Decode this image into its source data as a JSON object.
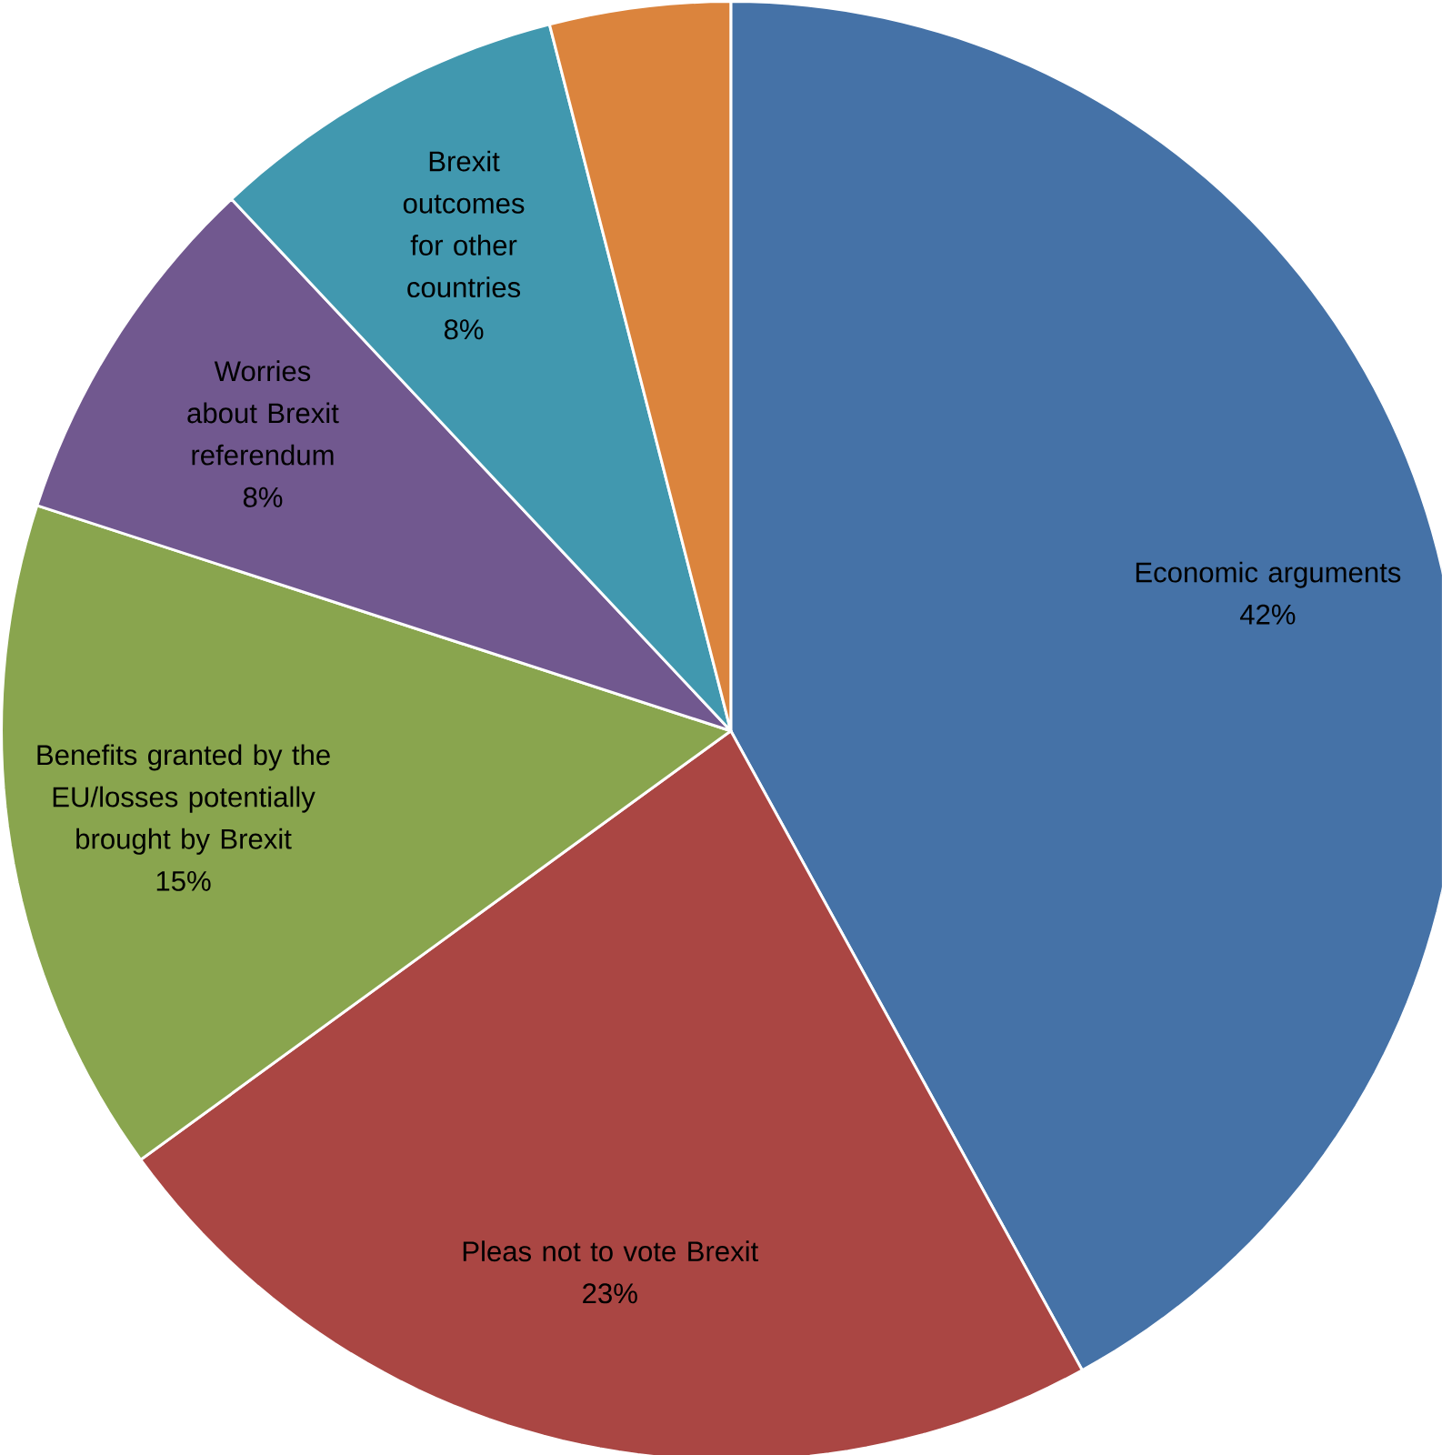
{
  "chart_data": {
    "type": "pie",
    "categories": [
      "Economic arguments",
      "Pleas not to vote Brexit",
      "Benefits granted by the EU/losses potentially brought by Brexit",
      "Worries about Brexit referendum",
      "Brexit outcomes for other countries",
      null
    ],
    "values": [
      42,
      23,
      15,
      8,
      8,
      4
    ],
    "value_labels": [
      "42%",
      "23%",
      "15%",
      "8%",
      "8%",
      null
    ],
    "colors": [
      "#4572a7",
      "#aa4643",
      "#89a54e",
      "#71588f",
      "#4198af",
      "#db843d"
    ]
  }
}
